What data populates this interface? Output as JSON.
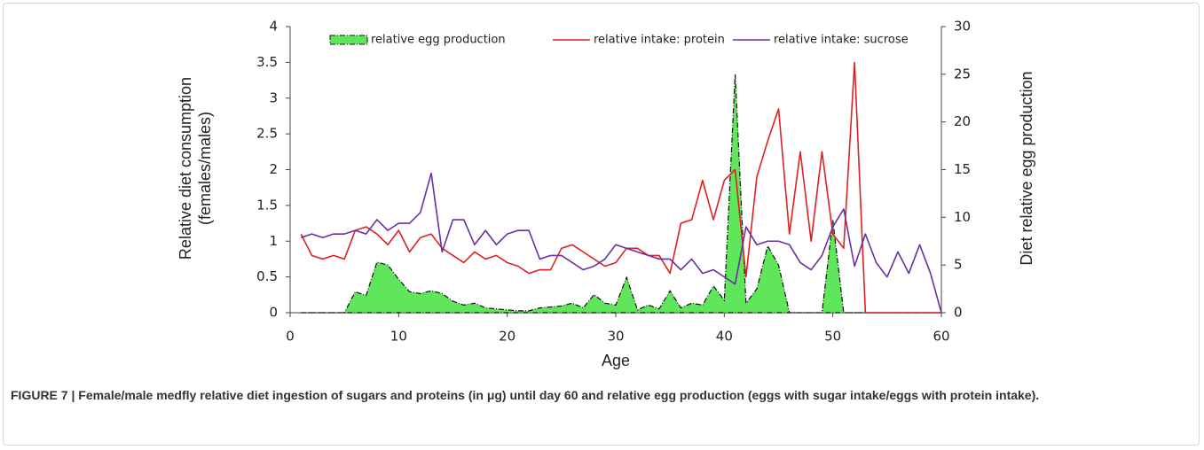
{
  "chart_data": {
    "type": "line",
    "xlabel": "Age",
    "ylabel": [
      "Relative diet consumption",
      "(females/males)"
    ],
    "y2label": "Diet relative egg production",
    "x": [
      1,
      2,
      3,
      4,
      5,
      6,
      7,
      8,
      9,
      10,
      11,
      12,
      13,
      14,
      15,
      16,
      17,
      18,
      19,
      20,
      21,
      22,
      23,
      24,
      25,
      26,
      27,
      28,
      29,
      30,
      31,
      32,
      33,
      34,
      35,
      36,
      37,
      38,
      39,
      40,
      41,
      42,
      43,
      44,
      45,
      46,
      47,
      48,
      49,
      50,
      51,
      52,
      53,
      54,
      55,
      56,
      57,
      58,
      59,
      60
    ],
    "xlim": [
      0,
      60
    ],
    "xticks": [
      0,
      10,
      20,
      30,
      40,
      50,
      60
    ],
    "ylim": [
      0,
      4
    ],
    "yticks": [
      0,
      0.5,
      1,
      1.5,
      2,
      2.5,
      3,
      3.5,
      4
    ],
    "y2lim": [
      0,
      30
    ],
    "y2ticks": [
      0,
      5,
      10,
      15,
      20,
      25,
      30
    ],
    "series": [
      {
        "name": "relative egg production",
        "type": "area",
        "axis": "y2",
        "color": "#5fe65a",
        "values": [
          0,
          0,
          0,
          0,
          0,
          2.2,
          1.8,
          5.3,
          5.0,
          3.5,
          2.2,
          2.0,
          2.3,
          2.0,
          1.2,
          0.8,
          1.0,
          0.5,
          0.4,
          0.3,
          0.2,
          0.2,
          0.5,
          0.6,
          0.7,
          1.0,
          0.5,
          1.9,
          1.0,
          0.8,
          3.7,
          0.3,
          0.8,
          0.4,
          2.3,
          0.5,
          1.0,
          0.8,
          2.8,
          1.3,
          25,
          1.0,
          2.5,
          7.0,
          5.0,
          0,
          0,
          0,
          0,
          9.7,
          0,
          0,
          0,
          0,
          0,
          0,
          0,
          0,
          0,
          0
        ]
      },
      {
        "name": "relative intake: protein",
        "color": "#e02020",
        "values": [
          1.1,
          0.8,
          0.75,
          0.8,
          0.75,
          1.15,
          1.2,
          1.1,
          0.95,
          1.15,
          0.85,
          1.05,
          1.1,
          0.9,
          0.8,
          0.7,
          0.85,
          0.75,
          0.8,
          0.7,
          0.65,
          0.55,
          0.6,
          0.6,
          0.9,
          0.95,
          0.85,
          0.75,
          0.65,
          0.7,
          0.9,
          0.9,
          0.8,
          0.8,
          0.55,
          1.25,
          1.3,
          1.85,
          1.3,
          1.85,
          2.0,
          0.5,
          1.9,
          2.4,
          2.85,
          1.1,
          2.25,
          1.0,
          2.25,
          1.1,
          0.9,
          3.5,
          0,
          0,
          0,
          0,
          0,
          0,
          0,
          0
        ]
      },
      {
        "name": "relative intake: sucrose",
        "color": "#6a2fa0",
        "values": [
          1.05,
          1.1,
          1.05,
          1.1,
          1.1,
          1.15,
          1.1,
          1.3,
          1.15,
          1.25,
          1.25,
          1.4,
          1.95,
          0.85,
          1.3,
          1.3,
          0.95,
          1.15,
          0.95,
          1.1,
          1.15,
          1.15,
          0.75,
          0.8,
          0.8,
          0.7,
          0.6,
          0.65,
          0.75,
          0.95,
          0.9,
          0.85,
          0.8,
          0.75,
          0.75,
          0.6,
          0.75,
          0.55,
          0.6,
          0.5,
          0.4,
          1.2,
          0.95,
          1.0,
          1.0,
          0.95,
          0.7,
          0.6,
          0.8,
          1.2,
          1.45,
          0.65,
          1.1,
          0.7,
          0.5,
          0.85,
          0.55,
          0.95,
          0.55,
          0
        ]
      }
    ]
  },
  "caption": "FIGURE 7 | Female/male medfly relative diet ingestion of sugars and proteins (in μg) until day 60 and relative egg production (eggs with sugar intake/eggs with protein intake)."
}
